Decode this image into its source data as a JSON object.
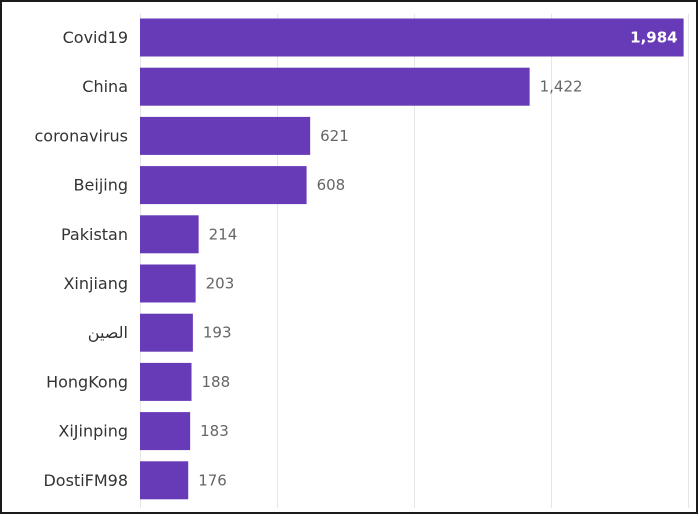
{
  "chart_data": {
    "type": "bar",
    "orientation": "horizontal",
    "categories": [
      "Covid19",
      "China",
      "coronavirus",
      "Beijing",
      "Pakistan",
      "Xinjiang",
      "الصين",
      "HongKong",
      "XiJinping",
      "DostiFM98"
    ],
    "values": [
      1984,
      1422,
      621,
      608,
      214,
      203,
      193,
      188,
      183,
      176
    ],
    "value_labels": [
      "1,984",
      "1,422",
      "621",
      "608",
      "214",
      "203",
      "193",
      "188",
      "183",
      "176"
    ],
    "title": "",
    "xlabel": "",
    "ylabel": "",
    "xlim": [
      0,
      2000
    ],
    "grid": true,
    "legend": "none",
    "bar_color": "#673AB7"
  }
}
